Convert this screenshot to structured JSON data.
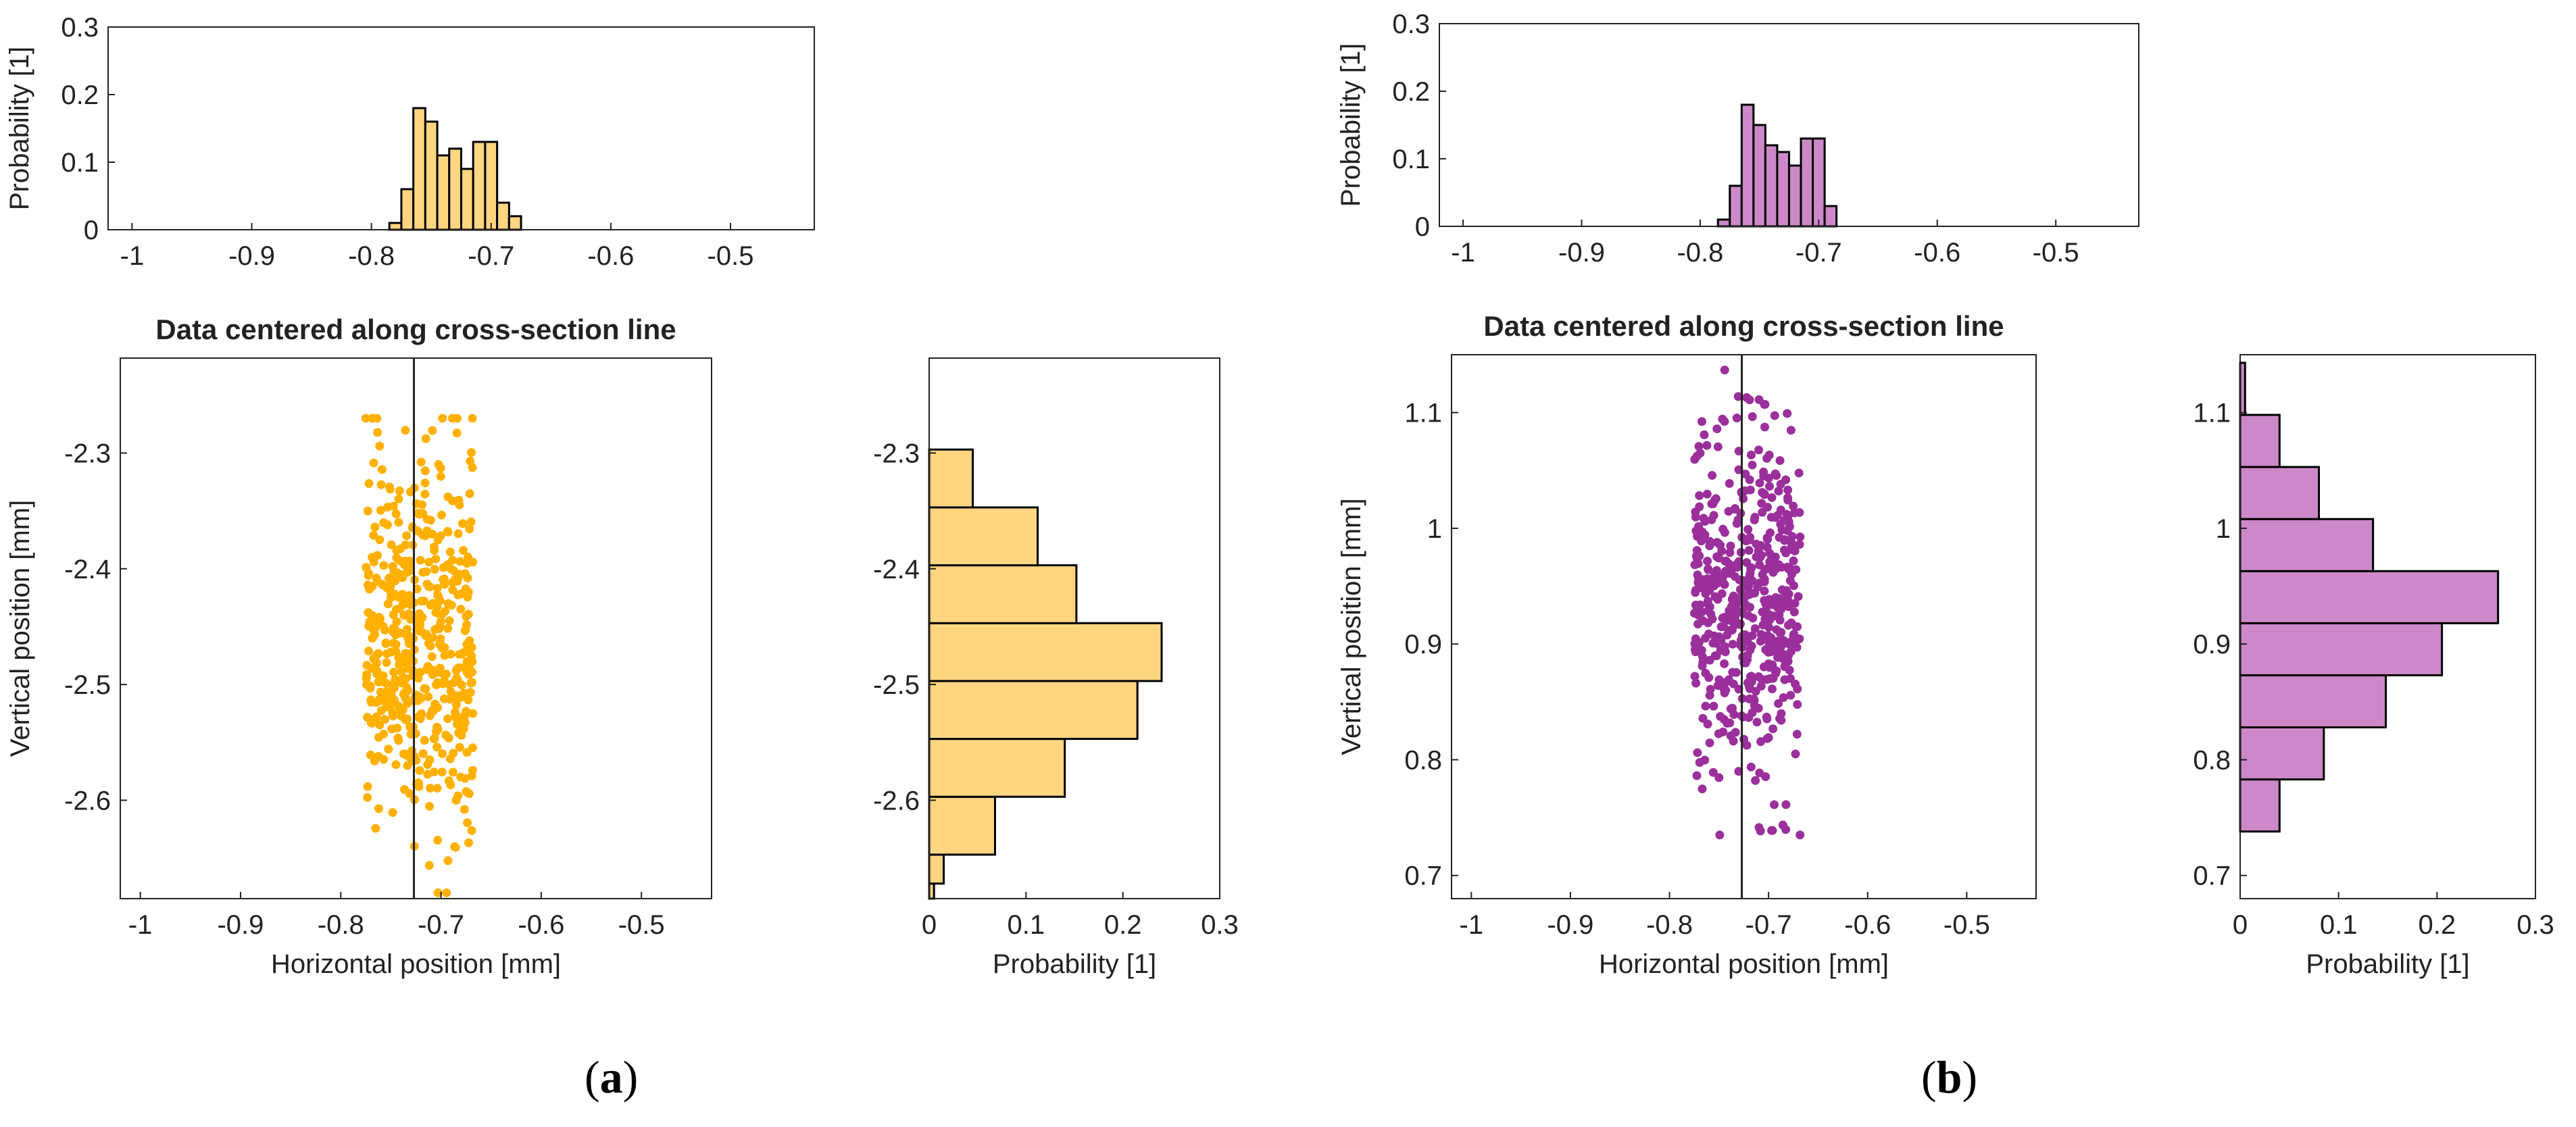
{
  "panels": [
    {
      "label_prefix": "(",
      "label_letter": "a",
      "label_suffix": ")",
      "color": "#ffb000",
      "hist_fill": "#ffd580",
      "top_hist": {
        "type": "bar",
        "ylabel": "Probability [1]",
        "xlim": [
          -1.02,
          -0.43
        ],
        "ylim": [
          0,
          0.3
        ],
        "xticks": [
          -1,
          -0.9,
          -0.8,
          -0.7,
          -0.6,
          -0.5
        ],
        "xtick_labels": [
          "-1",
          "-0.9",
          "-0.8",
          "-0.7",
          "-0.6",
          "-0.5"
        ],
        "yticks": [
          0,
          0.1,
          0.2,
          0.3
        ],
        "ytick_labels": [
          "0",
          "0.1",
          "0.2",
          "0.3"
        ],
        "bin_start": -0.785,
        "bin_width": 0.01,
        "values": [
          0.01,
          0.06,
          0.18,
          0.16,
          0.11,
          0.12,
          0.09,
          0.13,
          0.13,
          0.04,
          0.02
        ]
      },
      "scatter": {
        "type": "scatter",
        "title": "Data centered along cross-section line",
        "xlabel": "Horizontal position [mm]",
        "ylabel": "Vertical position [mm]",
        "xlim": [
          -1.02,
          -0.43
        ],
        "ylim": [
          -2.685,
          -2.218
        ],
        "xticks": [
          -1,
          -0.9,
          -0.8,
          -0.7,
          -0.6,
          -0.5
        ],
        "xtick_labels": [
          "-1",
          "-0.9",
          "-0.8",
          "-0.7",
          "-0.6",
          "-0.5"
        ],
        "yticks": [
          -2.3,
          -2.4,
          -2.5,
          -2.6
        ],
        "ytick_labels": [
          "-2.3",
          "-2.4",
          "-2.5",
          "-2.6"
        ],
        "center_line_x": -0.727,
        "x_range": [
          -0.775,
          -0.668
        ],
        "y_center": -2.455,
        "y_sd": 0.08,
        "y_clip": [
          -2.68,
          -2.27
        ],
        "point_count": 520,
        "seed": 11
      },
      "side_hist": {
        "type": "bar",
        "xlabel": "Probability [1]",
        "xlim": [
          0,
          0.3
        ],
        "ylim": [
          -2.685,
          -2.218
        ],
        "xticks": [
          0,
          0.1,
          0.2,
          0.3
        ],
        "xtick_labels": [
          "0",
          "0.1",
          "0.2",
          "0.3"
        ],
        "yticks": [
          -2.3,
          -2.4,
          -2.5,
          -2.6
        ],
        "ytick_labels": [
          "-2.3",
          "-2.4",
          "-2.5",
          "-2.6"
        ],
        "bin_edges": [
          -2.685,
          -2.672,
          -2.647,
          -2.597,
          -2.547,
          -2.497,
          -2.447,
          -2.397,
          -2.347,
          -2.297,
          -2.247
        ],
        "values": [
          0.005,
          0.015,
          0.068,
          0.14,
          0.215,
          0.24,
          0.152,
          0.112,
          0.045,
          0.0
        ]
      }
    },
    {
      "label_prefix": "(",
      "label_letter": "b",
      "label_suffix": ")",
      "color": "#9b2f9b",
      "hist_fill": "#cc88c8",
      "top_hist": {
        "type": "bar",
        "ylabel": "Probability [1]",
        "xlim": [
          -1.02,
          -0.43
        ],
        "ylim": [
          0,
          0.3
        ],
        "xticks": [
          -1,
          -0.9,
          -0.8,
          -0.7,
          -0.6,
          -0.5
        ],
        "xtick_labels": [
          "-1",
          "-0.9",
          "-0.8",
          "-0.7",
          "-0.6",
          "-0.5"
        ],
        "yticks": [
          0,
          0.1,
          0.2,
          0.3
        ],
        "ytick_labels": [
          "0",
          "0.1",
          "0.2",
          "0.3"
        ],
        "bin_start": -0.785,
        "bin_width": 0.01,
        "values": [
          0.01,
          0.06,
          0.18,
          0.15,
          0.12,
          0.11,
          0.09,
          0.13,
          0.13,
          0.03,
          0.0
        ]
      },
      "scatter": {
        "type": "scatter",
        "title": "Data centered along cross-section line",
        "xlabel": "Horizontal position [mm]",
        "ylabel": "Vertical position [mm]",
        "xlim": [
          -1.02,
          -0.43
        ],
        "ylim": [
          0.68,
          1.15
        ],
        "xticks": [
          -1,
          -0.9,
          -0.8,
          -0.7,
          -0.6,
          -0.5
        ],
        "xtick_labels": [
          "-1",
          "-0.9",
          "-0.8",
          "-0.7",
          "-0.6",
          "-0.5"
        ],
        "yticks": [
          0.7,
          0.8,
          0.9,
          1.0,
          1.1
        ],
        "ytick_labels": [
          "0.7",
          "0.8",
          "0.9",
          "1",
          "1.1"
        ],
        "center_line_x": -0.727,
        "x_range": [
          -0.775,
          -0.668
        ],
        "y_center": 0.93,
        "y_sd": 0.075,
        "y_clip": [
          0.735,
          1.14
        ],
        "point_count": 520,
        "seed": 23
      },
      "side_hist": {
        "type": "bar",
        "xlabel": "Probability [1]",
        "xlim": [
          0,
          0.3
        ],
        "ylim": [
          0.68,
          1.15
        ],
        "xticks": [
          0,
          0.1,
          0.2,
          0.3
        ],
        "xtick_labels": [
          "0",
          "0.1",
          "0.2",
          "0.3"
        ],
        "yticks": [
          0.7,
          0.8,
          0.9,
          1.0,
          1.1
        ],
        "ytick_labels": [
          "0.7",
          "0.8",
          "0.9",
          "1",
          "1.1"
        ],
        "bin_edges": [
          0.738,
          0.783,
          0.828,
          0.873,
          0.918,
          0.963,
          1.008,
          1.053,
          1.098,
          1.143
        ],
        "values": [
          0.04,
          0.085,
          0.148,
          0.205,
          0.262,
          0.135,
          0.08,
          0.04,
          0.005
        ]
      }
    }
  ]
}
